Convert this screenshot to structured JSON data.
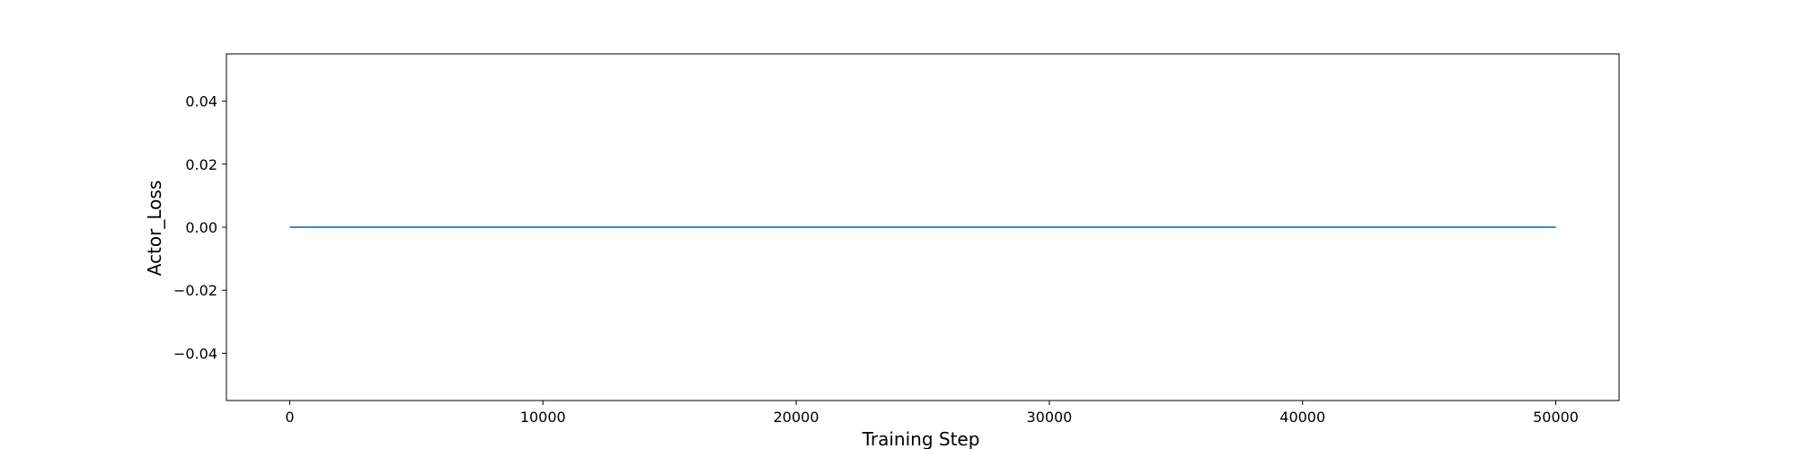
{
  "chart_data": {
    "type": "line",
    "title": "",
    "xlabel": "Training Step",
    "ylabel": "Actor_Loss",
    "xlim": [
      -2500,
      52500
    ],
    "ylim": [
      -0.055,
      0.055
    ],
    "xticks": [
      0,
      10000,
      20000,
      30000,
      40000,
      50000
    ],
    "xtick_labels": [
      "0",
      "10000",
      "20000",
      "30000",
      "40000",
      "50000"
    ],
    "yticks": [
      -0.04,
      -0.02,
      0.0,
      0.02,
      0.04
    ],
    "ytick_labels": [
      "−0.04",
      "−0.02",
      "0.00",
      "0.02",
      "0.04"
    ],
    "grid": false,
    "series": [
      {
        "color": "#1f77b4",
        "x": [
          0,
          50000
        ],
        "y": [
          0.0,
          0.0
        ]
      }
    ]
  }
}
